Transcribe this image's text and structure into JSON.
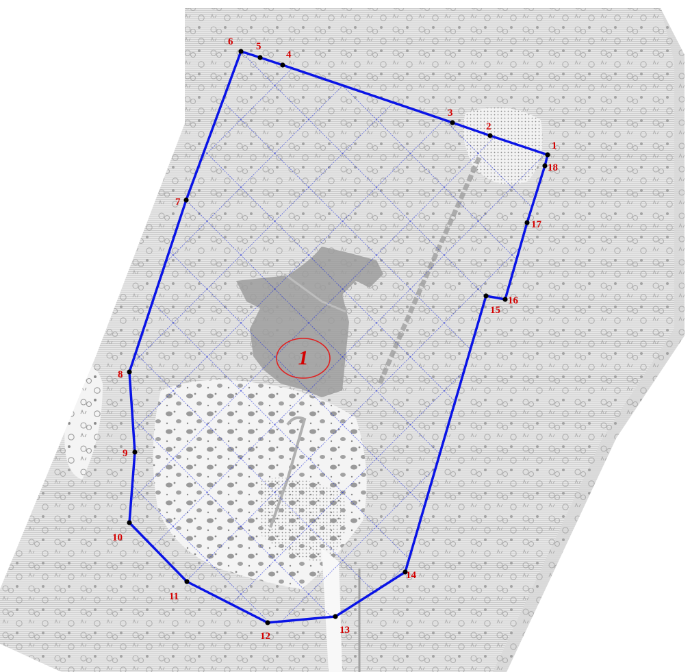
{
  "map": {
    "parcel_label": "1",
    "boundary_color": "#0a14e6",
    "label_color": "#d40000",
    "marker_color": "#000000",
    "vertices": [
      {
        "id": "1",
        "label": "1"
      },
      {
        "id": "2",
        "label": "2"
      },
      {
        "id": "3",
        "label": "3"
      },
      {
        "id": "4",
        "label": "4"
      },
      {
        "id": "5",
        "label": "5"
      },
      {
        "id": "6",
        "label": "6"
      },
      {
        "id": "7",
        "label": "7"
      },
      {
        "id": "8",
        "label": "8"
      },
      {
        "id": "9",
        "label": "9"
      },
      {
        "id": "10",
        "label": "10"
      },
      {
        "id": "11",
        "label": "11"
      },
      {
        "id": "12",
        "label": "12"
      },
      {
        "id": "13",
        "label": "13"
      },
      {
        "id": "14",
        "label": "14"
      },
      {
        "id": "15",
        "label": "15"
      },
      {
        "id": "16",
        "label": "16"
      },
      {
        "id": "17",
        "label": "17"
      },
      {
        "id": "18",
        "label": "18"
      }
    ]
  }
}
